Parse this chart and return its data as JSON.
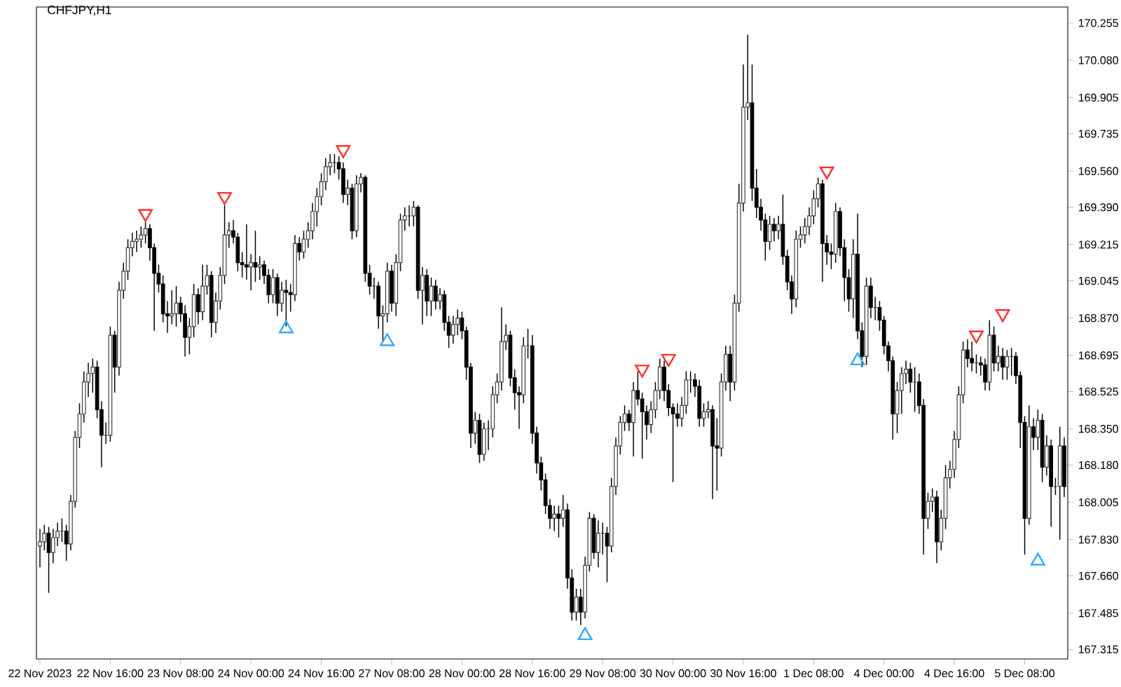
{
  "chart_data": {
    "type": "candlestick",
    "title": "CHFJPY,H1",
    "categories": [
      "22 Nov 2023",
      null,
      null,
      null,
      null,
      null,
      null,
      null,
      null,
      null,
      null,
      null,
      null,
      null,
      null,
      null,
      "22 Nov 16:00",
      null,
      null,
      null,
      null,
      null,
      null,
      null,
      null,
      null,
      null,
      null,
      null,
      null,
      null,
      null,
      "23 Nov 08:00",
      null,
      null,
      null,
      null,
      null,
      null,
      null,
      null,
      null,
      null,
      null,
      null,
      null,
      null,
      null,
      "24 Nov 00:00",
      null,
      null,
      null,
      null,
      null,
      null,
      null,
      null,
      null,
      null,
      null,
      null,
      null,
      null,
      null,
      "24 Nov 16:00",
      null,
      null,
      null,
      null,
      null,
      null,
      null,
      null,
      null,
      null,
      null,
      null,
      null,
      null,
      null,
      "27 Nov 08:00",
      null,
      null,
      null,
      null,
      null,
      null,
      null,
      null,
      null,
      null,
      null,
      null,
      null,
      null,
      null,
      "28 Nov 00:00",
      null,
      null,
      null,
      null,
      null,
      null,
      null,
      null,
      null,
      null,
      null,
      null,
      null,
      null,
      null,
      "28 Nov 16:00",
      null,
      null,
      null,
      null,
      null,
      null,
      null,
      null,
      null,
      null,
      null,
      null,
      null,
      null,
      null,
      "29 Nov 08:00",
      null,
      null,
      null,
      null,
      null,
      null,
      null,
      null,
      null,
      null,
      null,
      null,
      null,
      null,
      null,
      "30 Nov 00:00",
      null,
      null,
      null,
      null,
      null,
      null,
      null,
      null,
      null,
      null,
      null,
      null,
      null,
      null,
      null,
      "30 Nov 16:00",
      null,
      null,
      null,
      null,
      null,
      null,
      null,
      null,
      null,
      null,
      null,
      null,
      null,
      null,
      null,
      "1 Dec 08:00",
      null,
      null,
      null,
      null,
      null,
      null,
      null,
      null,
      null,
      null,
      null,
      null,
      null,
      null,
      null,
      "4 Dec 00:00",
      null,
      null,
      null,
      null,
      null,
      null,
      null,
      null,
      null,
      null,
      null,
      null,
      null,
      null,
      null,
      "4 Dec 16:00",
      null,
      null,
      null,
      null,
      null,
      null,
      null,
      null,
      null,
      null,
      null,
      null,
      null,
      null,
      null,
      "5 Dec 08:00",
      null,
      null,
      null,
      null,
      null,
      null,
      null,
      null,
      null
    ],
    "ohlc": [
      [
        167.8,
        167.88,
        167.7,
        167.82
      ],
      [
        167.82,
        167.9,
        167.78,
        167.86
      ],
      [
        167.86,
        167.89,
        167.58,
        167.77
      ],
      [
        167.77,
        167.88,
        167.72,
        167.84
      ],
      [
        167.84,
        167.91,
        167.8,
        167.87
      ],
      [
        167.87,
        167.93,
        167.82,
        167.87
      ],
      [
        167.87,
        167.9,
        167.73,
        167.81
      ],
      [
        167.81,
        168.04,
        167.78,
        168.01
      ],
      [
        168.01,
        168.34,
        167.98,
        168.31
      ],
      [
        168.31,
        168.47,
        168.26,
        168.42
      ],
      [
        168.42,
        168.62,
        168.38,
        168.57
      ],
      [
        168.57,
        168.66,
        168.5,
        168.61
      ],
      [
        168.61,
        168.68,
        168.52,
        168.64
      ],
      [
        168.64,
        168.67,
        168.4,
        168.44
      ],
      [
        168.44,
        168.48,
        168.17,
        168.32
      ],
      [
        168.32,
        168.38,
        168.28,
        168.32
      ],
      [
        168.32,
        168.83,
        168.29,
        168.79
      ],
      [
        168.79,
        168.81,
        168.52,
        168.64
      ],
      [
        168.64,
        169.04,
        168.6,
        169.0
      ],
      [
        169.0,
        169.13,
        168.96,
        169.09
      ],
      [
        169.09,
        169.24,
        169.05,
        169.2
      ],
      [
        169.2,
        169.27,
        169.16,
        169.23
      ],
      [
        169.23,
        169.28,
        169.18,
        169.24
      ],
      [
        169.24,
        169.3,
        169.2,
        169.26
      ],
      [
        169.26,
        169.32,
        169.22,
        169.29
      ],
      [
        169.29,
        169.31,
        169.14,
        169.2
      ],
      [
        169.2,
        169.22,
        168.81,
        169.08
      ],
      [
        169.08,
        169.12,
        168.99,
        169.03
      ],
      [
        169.03,
        169.07,
        168.85,
        168.89
      ],
      [
        168.89,
        168.95,
        168.8,
        168.88
      ],
      [
        168.88,
        169.0,
        168.84,
        168.89
      ],
      [
        168.89,
        169.02,
        168.83,
        168.94
      ],
      [
        168.94,
        168.97,
        168.85,
        168.89
      ],
      [
        168.89,
        168.93,
        168.69,
        168.78
      ],
      [
        168.78,
        168.87,
        168.7,
        168.83
      ],
      [
        168.83,
        169.03,
        168.78,
        168.98
      ],
      [
        168.98,
        169.01,
        168.84,
        168.9
      ],
      [
        168.9,
        169.12,
        168.86,
        169.02
      ],
      [
        169.02,
        169.12,
        168.98,
        169.07
      ],
      [
        169.07,
        169.09,
        168.78,
        168.85
      ],
      [
        168.85,
        168.99,
        168.8,
        168.95
      ],
      [
        168.95,
        169.11,
        168.91,
        169.07
      ],
      [
        169.07,
        169.4,
        169.03,
        169.26
      ],
      [
        169.26,
        169.32,
        169.2,
        169.28
      ],
      [
        169.28,
        169.33,
        169.22,
        169.25
      ],
      [
        169.25,
        169.27,
        169.09,
        169.13
      ],
      [
        169.13,
        169.18,
        169.06,
        169.12
      ],
      [
        169.12,
        169.31,
        169.05,
        169.11
      ],
      [
        169.11,
        169.17,
        169.0,
        169.13
      ],
      [
        169.13,
        169.28,
        169.04,
        169.11
      ],
      [
        169.11,
        169.16,
        169.05,
        169.12
      ],
      [
        169.12,
        169.14,
        169.03,
        169.07
      ],
      [
        169.07,
        169.1,
        168.94,
        168.98
      ],
      [
        168.98,
        169.1,
        168.94,
        169.06
      ],
      [
        169.06,
        169.08,
        168.88,
        168.94
      ],
      [
        168.94,
        169.04,
        168.9,
        169.0
      ],
      [
        169.0,
        169.05,
        168.83,
        168.99
      ],
      [
        168.99,
        169.03,
        168.9,
        168.98
      ],
      [
        168.98,
        169.26,
        168.95,
        169.22
      ],
      [
        169.22,
        169.25,
        169.14,
        169.18
      ],
      [
        169.18,
        169.28,
        169.15,
        169.24
      ],
      [
        169.24,
        169.32,
        169.2,
        169.28
      ],
      [
        169.28,
        169.41,
        169.24,
        169.37
      ],
      [
        169.37,
        169.48,
        169.3,
        169.44
      ],
      [
        169.44,
        169.55,
        169.4,
        169.51
      ],
      [
        169.51,
        169.62,
        169.47,
        169.58
      ],
      [
        169.58,
        169.64,
        169.54,
        169.6
      ],
      [
        169.6,
        169.64,
        169.55,
        169.6
      ],
      [
        169.6,
        169.63,
        169.52,
        169.57
      ],
      [
        169.57,
        169.6,
        169.41,
        169.45
      ],
      [
        169.45,
        169.52,
        169.4,
        169.48
      ],
      [
        169.48,
        169.5,
        169.24,
        169.28
      ],
      [
        169.28,
        169.54,
        169.25,
        169.5
      ],
      [
        169.5,
        169.55,
        169.46,
        169.53
      ],
      [
        169.53,
        169.54,
        169.04,
        169.08
      ],
      [
        169.08,
        169.12,
        168.98,
        169.02
      ],
      [
        169.02,
        169.06,
        168.96,
        169.02
      ],
      [
        169.02,
        169.04,
        168.82,
        168.88
      ],
      [
        168.88,
        168.93,
        168.76,
        168.89
      ],
      [
        168.89,
        169.13,
        168.85,
        169.09
      ],
      [
        169.09,
        169.12,
        168.9,
        168.94
      ],
      [
        168.94,
        169.17,
        168.88,
        169.13
      ],
      [
        169.13,
        169.36,
        169.09,
        169.33
      ],
      [
        169.33,
        169.39,
        169.28,
        169.35
      ],
      [
        169.35,
        169.4,
        169.3,
        169.35
      ],
      [
        169.35,
        169.42,
        169.3,
        169.39
      ],
      [
        169.39,
        169.4,
        168.96,
        169.0
      ],
      [
        169.0,
        169.11,
        168.84,
        169.07
      ],
      [
        169.07,
        169.1,
        168.88,
        168.95
      ],
      [
        168.95,
        169.06,
        168.88,
        169.02
      ],
      [
        169.02,
        169.05,
        168.91,
        168.95
      ],
      [
        168.95,
        169.01,
        168.91,
        168.98
      ],
      [
        168.98,
        169.0,
        168.81,
        168.85
      ],
      [
        168.85,
        168.88,
        168.73,
        168.79
      ],
      [
        168.79,
        168.88,
        168.75,
        168.84
      ],
      [
        168.84,
        168.91,
        168.79,
        168.87
      ],
      [
        168.87,
        168.9,
        168.77,
        168.81
      ],
      [
        168.81,
        168.83,
        168.58,
        168.64
      ],
      [
        168.64,
        168.66,
        168.26,
        168.33
      ],
      [
        168.33,
        168.43,
        168.28,
        168.39
      ],
      [
        168.39,
        168.42,
        168.19,
        168.23
      ],
      [
        168.23,
        168.38,
        168.2,
        168.35
      ],
      [
        168.35,
        168.39,
        168.25,
        168.35
      ],
      [
        168.35,
        168.55,
        168.31,
        168.51
      ],
      [
        168.51,
        168.61,
        168.47,
        168.57
      ],
      [
        168.57,
        168.92,
        168.53,
        168.76
      ],
      [
        168.76,
        168.84,
        168.72,
        168.79
      ],
      [
        168.79,
        168.81,
        168.55,
        168.59
      ],
      [
        168.59,
        168.63,
        168.44,
        168.52
      ],
      [
        168.52,
        168.55,
        168.35,
        168.51
      ],
      [
        168.51,
        168.78,
        168.47,
        168.74
      ],
      [
        168.74,
        168.82,
        168.68,
        168.74
      ],
      [
        168.74,
        168.79,
        168.28,
        168.33
      ],
      [
        168.33,
        168.36,
        168.14,
        168.19
      ],
      [
        168.19,
        168.22,
        168.06,
        168.11
      ],
      [
        168.11,
        168.14,
        167.95,
        167.99
      ],
      [
        167.99,
        168.02,
        167.88,
        167.93
      ],
      [
        167.93,
        167.99,
        167.87,
        167.95
      ],
      [
        167.95,
        167.99,
        167.84,
        167.93
      ],
      [
        167.93,
        168.04,
        167.89,
        167.97
      ],
      [
        167.97,
        168.0,
        167.6,
        167.65
      ],
      [
        167.65,
        167.69,
        167.45,
        167.49
      ],
      [
        167.49,
        167.6,
        167.45,
        167.56
      ],
      [
        167.56,
        167.6,
        167.43,
        167.49
      ],
      [
        167.49,
        167.75,
        167.46,
        167.71
      ],
      [
        167.71,
        167.96,
        167.68,
        167.93
      ],
      [
        167.93,
        167.95,
        167.74,
        167.77
      ],
      [
        167.77,
        167.92,
        167.7,
        167.86
      ],
      [
        167.86,
        167.91,
        167.76,
        167.86
      ],
      [
        167.86,
        167.89,
        167.63,
        167.8
      ],
      [
        167.8,
        168.12,
        167.77,
        168.08
      ],
      [
        168.08,
        168.31,
        168.04,
        168.27
      ],
      [
        168.27,
        168.41,
        168.23,
        168.38
      ],
      [
        168.38,
        168.46,
        168.34,
        168.42
      ],
      [
        168.42,
        168.44,
        168.34,
        168.38
      ],
      [
        168.38,
        168.57,
        168.22,
        168.53
      ],
      [
        168.53,
        168.62,
        168.46,
        168.49
      ],
      [
        168.49,
        168.52,
        168.21,
        168.43
      ],
      [
        168.43,
        168.46,
        168.3,
        168.37
      ],
      [
        168.37,
        168.48,
        168.33,
        168.44
      ],
      [
        168.44,
        168.57,
        168.4,
        168.53
      ],
      [
        168.53,
        168.68,
        168.49,
        168.64
      ],
      [
        168.64,
        168.67,
        168.48,
        168.53
      ],
      [
        168.53,
        168.56,
        168.41,
        168.45
      ],
      [
        168.45,
        168.47,
        168.1,
        168.42
      ],
      [
        168.42,
        168.47,
        168.36,
        168.4
      ],
      [
        168.4,
        168.5,
        168.36,
        168.46
      ],
      [
        168.46,
        168.62,
        168.42,
        168.58
      ],
      [
        168.58,
        168.62,
        168.52,
        168.58
      ],
      [
        168.58,
        168.61,
        168.5,
        168.55
      ],
      [
        168.55,
        168.58,
        168.36,
        168.4
      ],
      [
        168.4,
        168.47,
        168.36,
        168.43
      ],
      [
        168.43,
        168.48,
        168.4,
        168.44
      ],
      [
        168.44,
        168.46,
        168.02,
        168.27
      ],
      [
        168.27,
        168.4,
        168.06,
        168.26
      ],
      [
        168.26,
        168.61,
        168.22,
        168.57
      ],
      [
        168.57,
        168.74,
        168.53,
        168.7
      ],
      [
        168.7,
        168.74,
        168.48,
        168.57
      ],
      [
        168.57,
        168.98,
        168.53,
        168.94
      ],
      [
        168.94,
        169.5,
        168.9,
        169.41
      ],
      [
        169.41,
        170.06,
        169.37,
        169.86
      ],
      [
        169.86,
        170.2,
        169.8,
        169.88
      ],
      [
        169.88,
        170.06,
        169.42,
        169.48
      ],
      [
        169.48,
        169.57,
        169.34,
        169.39
      ],
      [
        169.39,
        169.43,
        169.28,
        169.33
      ],
      [
        169.33,
        169.36,
        169.14,
        169.23
      ],
      [
        169.23,
        169.35,
        169.19,
        169.31
      ],
      [
        169.31,
        169.34,
        169.23,
        169.28
      ],
      [
        169.28,
        169.35,
        169.24,
        169.31
      ],
      [
        169.31,
        169.45,
        169.12,
        169.16
      ],
      [
        169.16,
        169.19,
        169.0,
        169.04
      ],
      [
        169.04,
        169.07,
        168.89,
        168.96
      ],
      [
        168.96,
        169.28,
        168.92,
        169.24
      ],
      [
        169.24,
        169.3,
        169.2,
        169.26
      ],
      [
        169.26,
        169.34,
        169.22,
        169.3
      ],
      [
        169.3,
        169.39,
        169.26,
        169.35
      ],
      [
        169.35,
        169.47,
        169.31,
        169.43
      ],
      [
        169.43,
        169.53,
        169.39,
        169.5
      ],
      [
        169.5,
        169.52,
        169.04,
        169.22
      ],
      [
        169.22,
        169.26,
        169.12,
        169.18
      ],
      [
        169.18,
        169.22,
        169.1,
        169.17
      ],
      [
        169.17,
        169.41,
        169.13,
        169.37
      ],
      [
        169.37,
        169.39,
        169.16,
        169.2
      ],
      [
        169.2,
        169.24,
        168.95,
        169.06
      ],
      [
        169.06,
        169.1,
        168.9,
        168.96
      ],
      [
        168.96,
        169.24,
        168.87,
        169.17
      ],
      [
        169.17,
        169.36,
        168.77,
        168.81
      ],
      [
        168.81,
        168.85,
        168.64,
        168.69
      ],
      [
        168.69,
        169.06,
        168.65,
        169.02
      ],
      [
        169.02,
        169.06,
        168.87,
        168.92
      ],
      [
        168.92,
        168.97,
        168.86,
        168.92
      ],
      [
        168.92,
        168.95,
        168.81,
        168.86
      ],
      [
        168.86,
        168.88,
        168.7,
        168.74
      ],
      [
        168.74,
        168.76,
        168.62,
        168.67
      ],
      [
        168.67,
        168.69,
        168.3,
        168.42
      ],
      [
        168.42,
        168.57,
        168.33,
        168.53
      ],
      [
        168.53,
        168.64,
        168.42,
        168.61
      ],
      [
        168.61,
        168.67,
        168.56,
        168.63
      ],
      [
        168.63,
        168.66,
        168.52,
        168.57
      ],
      [
        168.57,
        168.64,
        168.43,
        168.57
      ],
      [
        168.57,
        168.61,
        168.42,
        168.46
      ],
      [
        168.46,
        168.49,
        167.76,
        167.93
      ],
      [
        167.93,
        168.05,
        167.88,
        168.01
      ],
      [
        168.01,
        168.07,
        167.96,
        168.03
      ],
      [
        168.03,
        168.06,
        167.72,
        167.82
      ],
      [
        167.82,
        167.97,
        167.78,
        167.93
      ],
      [
        167.93,
        168.18,
        167.88,
        168.12
      ],
      [
        168.12,
        168.2,
        168.07,
        168.16
      ],
      [
        168.16,
        168.34,
        168.12,
        168.3
      ],
      [
        168.3,
        168.55,
        168.26,
        168.51
      ],
      [
        168.51,
        168.76,
        168.47,
        168.72
      ],
      [
        168.72,
        168.77,
        168.64,
        168.68
      ],
      [
        168.68,
        168.76,
        168.62,
        168.66
      ],
      [
        168.66,
        168.7,
        168.61,
        168.66
      ],
      [
        168.66,
        168.69,
        168.6,
        168.65
      ],
      [
        168.65,
        168.68,
        168.53,
        168.57
      ],
      [
        168.57,
        168.86,
        168.53,
        168.79
      ],
      [
        168.79,
        168.83,
        168.62,
        168.66
      ],
      [
        168.66,
        168.74,
        168.62,
        168.69
      ],
      [
        168.69,
        168.73,
        168.58,
        168.64
      ],
      [
        168.64,
        168.72,
        168.58,
        168.69
      ],
      [
        168.69,
        168.73,
        168.6,
        168.69
      ],
      [
        168.69,
        168.71,
        168.56,
        168.6
      ],
      [
        168.6,
        168.62,
        168.26,
        168.38
      ],
      [
        168.38,
        168.41,
        167.76,
        167.93
      ],
      [
        167.93,
        168.46,
        167.9,
        168.36
      ],
      [
        168.36,
        168.4,
        168.25,
        168.31
      ],
      [
        168.31,
        168.44,
        168.25,
        168.39
      ],
      [
        168.39,
        168.42,
        168.1,
        168.17
      ],
      [
        168.17,
        168.32,
        168.13,
        168.27
      ],
      [
        168.27,
        168.3,
        167.89,
        168.08
      ],
      [
        168.08,
        168.12,
        168.04,
        168.08
      ],
      [
        168.08,
        168.36,
        167.83,
        168.27
      ],
      [
        168.27,
        168.31,
        168.03,
        168.08
      ]
    ],
    "series": [
      {
        "type": "scatter",
        "color": "#ff3030",
        "marker": "triangle",
        "values": [
          null,
          null,
          null,
          null,
          null,
          null,
          null,
          null,
          null,
          null,
          null,
          null,
          null,
          null,
          null,
          null,
          null,
          null,
          null,
          null,
          null,
          null,
          null,
          null,
          169.36,
          null,
          null,
          null,
          null,
          null,
          null,
          null,
          null,
          null,
          null,
          null,
          null,
          null,
          null,
          null,
          null,
          null,
          169.44,
          null,
          null,
          null,
          null,
          null,
          null,
          null,
          null,
          null,
          null,
          null,
          null,
          null,
          null,
          null,
          null,
          null,
          null,
          null,
          null,
          null,
          null,
          null,
          null,
          null,
          null,
          169.66,
          null,
          null,
          null,
          null,
          null,
          null,
          null,
          null,
          null,
          null,
          null,
          null,
          null,
          null,
          null,
          null,
          null,
          null,
          null,
          null,
          null,
          null,
          null,
          null,
          null,
          null,
          null,
          null,
          null,
          null,
          null,
          null,
          null,
          null,
          null,
          null,
          null,
          null,
          null,
          null,
          null,
          null,
          null,
          null,
          null,
          null,
          null,
          null,
          null,
          null,
          null,
          null,
          null,
          null,
          null,
          null,
          null,
          null,
          null,
          null,
          null,
          null,
          null,
          null,
          null,
          null,
          null,
          168.63,
          null,
          null,
          null,
          null,
          null,
          168.68,
          null,
          null,
          null,
          null,
          null,
          null,
          null,
          null,
          null,
          null,
          null,
          null,
          null,
          null,
          null,
          null,
          null,
          null,
          null,
          null,
          null,
          null,
          null,
          null,
          null,
          null,
          null,
          null,
          null,
          null,
          null,
          null,
          null,
          null,
          null,
          169.56,
          null,
          null,
          null,
          null,
          null,
          null,
          null,
          null,
          null,
          null,
          null,
          null,
          null,
          null,
          null,
          null,
          null,
          null,
          null,
          null,
          null,
          null,
          null,
          null,
          null,
          null,
          null,
          null,
          null,
          null,
          null,
          null,
          null,
          168.79,
          null,
          null,
          null,
          null,
          null,
          168.89,
          null,
          null,
          null,
          null,
          null,
          null,
          null,
          null,
          null,
          null,
          null,
          null,
          null,
          null
        ]
      },
      {
        "type": "scatter",
        "color": "#30a8ff",
        "marker": "triangle",
        "values": [
          null,
          null,
          null,
          null,
          null,
          null,
          null,
          null,
          null,
          null,
          null,
          null,
          null,
          null,
          null,
          null,
          null,
          null,
          null,
          null,
          null,
          null,
          null,
          null,
          null,
          null,
          null,
          null,
          null,
          null,
          null,
          null,
          null,
          null,
          null,
          null,
          null,
          null,
          null,
          null,
          null,
          null,
          null,
          null,
          null,
          null,
          null,
          null,
          null,
          null,
          null,
          null,
          null,
          null,
          null,
          null,
          168.82,
          null,
          null,
          null,
          null,
          null,
          null,
          null,
          null,
          null,
          null,
          null,
          null,
          null,
          null,
          null,
          null,
          null,
          null,
          null,
          null,
          null,
          null,
          168.76,
          null,
          null,
          null,
          null,
          null,
          null,
          null,
          null,
          null,
          null,
          null,
          null,
          null,
          null,
          null,
          null,
          null,
          null,
          null,
          null,
          null,
          null,
          null,
          null,
          null,
          null,
          null,
          null,
          null,
          null,
          null,
          null,
          null,
          null,
          null,
          null,
          null,
          null,
          null,
          null,
          null,
          null,
          null,
          null,
          167.38,
          null,
          null,
          null,
          null,
          null,
          null,
          null,
          null,
          null,
          null,
          null,
          null,
          null,
          null,
          null,
          null,
          null,
          null,
          null,
          null,
          null,
          null,
          null,
          null,
          null,
          null,
          null,
          null,
          null,
          null,
          null,
          null,
          null,
          null,
          null,
          null,
          null,
          null,
          null,
          null,
          null,
          null,
          null,
          null,
          null,
          null,
          null,
          null,
          null,
          null,
          null,
          null,
          null,
          null,
          null,
          null,
          null,
          null,
          null,
          null,
          null,
          168.67,
          null,
          null,
          null,
          null,
          null,
          null,
          null,
          null,
          null,
          null,
          null,
          null,
          null,
          null,
          null,
          null,
          null,
          null,
          null,
          null,
          null,
          null,
          null,
          null,
          null,
          null,
          null,
          null,
          null,
          null,
          null,
          null,
          null,
          null,
          null,
          null,
          null,
          null,
          null,
          null,
          167.73,
          null,
          null,
          null,
          null,
          null,
          null
        ]
      }
    ],
    "ylim": [
      167.27,
      170.33
    ],
    "yticks": [
      167.315,
      167.485,
      {
        "value": 167.66,
        "label": "167.660"
      },
      {
        "value": 167.83,
        "label": "167.830"
      },
      168.005,
      {
        "value": 168.18,
        "label": "168.180"
      },
      {
        "value": 168.35,
        "label": "168.350"
      },
      168.525,
      168.695,
      {
        "value": 168.87,
        "label": "168.870"
      },
      169.045,
      169.215,
      {
        "value": 169.39,
        "label": "169.390"
      },
      {
        "value": 169.56,
        "label": "169.560"
      },
      169.735,
      169.905,
      {
        "value": 170.08,
        "label": "170.080"
      },
      170.255
    ],
    "grid": false
  }
}
